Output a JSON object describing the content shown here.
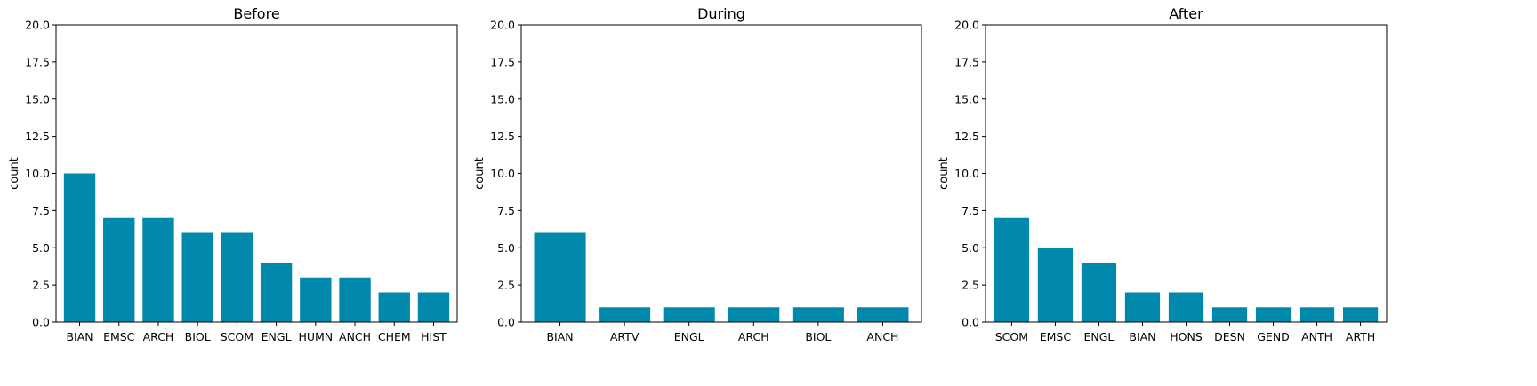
{
  "chart_data": [
    {
      "type": "bar",
      "title": "Before",
      "xlabel": "",
      "ylabel": "count",
      "ylim": [
        0,
        20
      ],
      "yticks": [
        "0.0",
        "2.5",
        "5.0",
        "7.5",
        "10.0",
        "12.5",
        "15.0",
        "17.5",
        "20.0"
      ],
      "categories": [
        "BIAN",
        "EMSC",
        "ARCH",
        "BIOL",
        "SCOM",
        "ENGL",
        "HUMN",
        "ANCH",
        "CHEM",
        "HIST"
      ],
      "values": [
        10,
        7,
        7,
        6,
        6,
        4,
        3,
        3,
        2,
        2
      ],
      "color": "#0088ad",
      "grid": false
    },
    {
      "type": "bar",
      "title": "During",
      "xlabel": "",
      "ylabel": "count",
      "ylim": [
        0,
        20
      ],
      "yticks": [
        "0.0",
        "2.5",
        "5.0",
        "7.5",
        "10.0",
        "12.5",
        "15.0",
        "17.5",
        "20.0"
      ],
      "categories": [
        "BIAN",
        "ARTV",
        "ENGL",
        "ARCH",
        "BIOL",
        "ANCH"
      ],
      "values": [
        6,
        1,
        1,
        1,
        1,
        1
      ],
      "color": "#0088ad",
      "grid": false
    },
    {
      "type": "bar",
      "title": "After",
      "xlabel": "",
      "ylabel": "count",
      "ylim": [
        0,
        20
      ],
      "yticks": [
        "0.0",
        "2.5",
        "5.0",
        "7.5",
        "10.0",
        "12.5",
        "15.0",
        "17.5",
        "20.0"
      ],
      "categories": [
        "SCOM",
        "EMSC",
        "ENGL",
        "BIAN",
        "HONS",
        "DESN",
        "GEND",
        "ANTH",
        "ARTH"
      ],
      "values": [
        7,
        5,
        4,
        2,
        2,
        1,
        1,
        1,
        1
      ],
      "color": "#0088ad",
      "grid": false
    }
  ]
}
